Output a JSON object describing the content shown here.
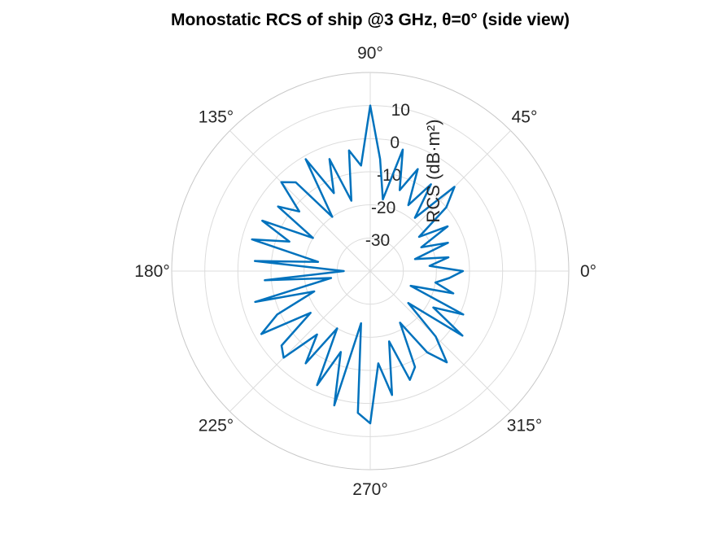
{
  "chart_data": {
    "type": "polar-line",
    "title": "Monostatic RCS of ship @3 GHz, θ=0° (side view)",
    "rlabel": "RCS (dB·m²)",
    "rlim": [
      -40,
      20
    ],
    "r_ticks": [
      "-30",
      "-20",
      "-10",
      "0",
      "10"
    ],
    "r_tick_values": [
      -30,
      -20,
      -10,
      0,
      10
    ],
    "theta_ticks": [
      "0°",
      "45°",
      "90°",
      "135°",
      "180°",
      "225°",
      "270°",
      "315°"
    ],
    "theta_tick_values": [
      0,
      45,
      90,
      135,
      180,
      225,
      270,
      315
    ],
    "grid": true,
    "series_color": "#0072BD",
    "series": [
      {
        "theta_deg": [
          0,
          5,
          10,
          15,
          20,
          25,
          30,
          35,
          40,
          45,
          50,
          55,
          60,
          65,
          70,
          75,
          80,
          85,
          90,
          95,
          100,
          105,
          110,
          115,
          120,
          125,
          130,
          135,
          140,
          145,
          150,
          155,
          160,
          165,
          170,
          175,
          180,
          185,
          190,
          195,
          200,
          205,
          210,
          215,
          220,
          225,
          230,
          235,
          240,
          245,
          250,
          255,
          260,
          265,
          270,
          275,
          280,
          285,
          290,
          295,
          300,
          305,
          310,
          315,
          320,
          325,
          330,
          335,
          340,
          345,
          350,
          355
        ],
        "rcs_db": [
          -12,
          -22,
          -16,
          -26,
          -15,
          -23,
          -13,
          -22,
          -10,
          -4,
          -19,
          -8,
          -17,
          -6,
          -14,
          -2,
          -18,
          -6,
          10,
          -8,
          -3,
          -18,
          -4,
          -14,
          -1,
          -20,
          -5,
          -2,
          -12,
          -6,
          -20,
          -4,
          -14,
          -3,
          -24,
          -5,
          -32,
          -8,
          -28,
          -4,
          -22,
          -9,
          -2,
          -18,
          -5,
          -3,
          -15,
          -6,
          -20,
          -2,
          -14,
          2,
          -24,
          3,
          6,
          -12,
          -2,
          -18,
          -5,
          -8,
          -22,
          -10,
          -4,
          -12,
          -25,
          -6,
          -18,
          -9,
          -27,
          -14,
          -20,
          -16
        ]
      }
    ]
  }
}
